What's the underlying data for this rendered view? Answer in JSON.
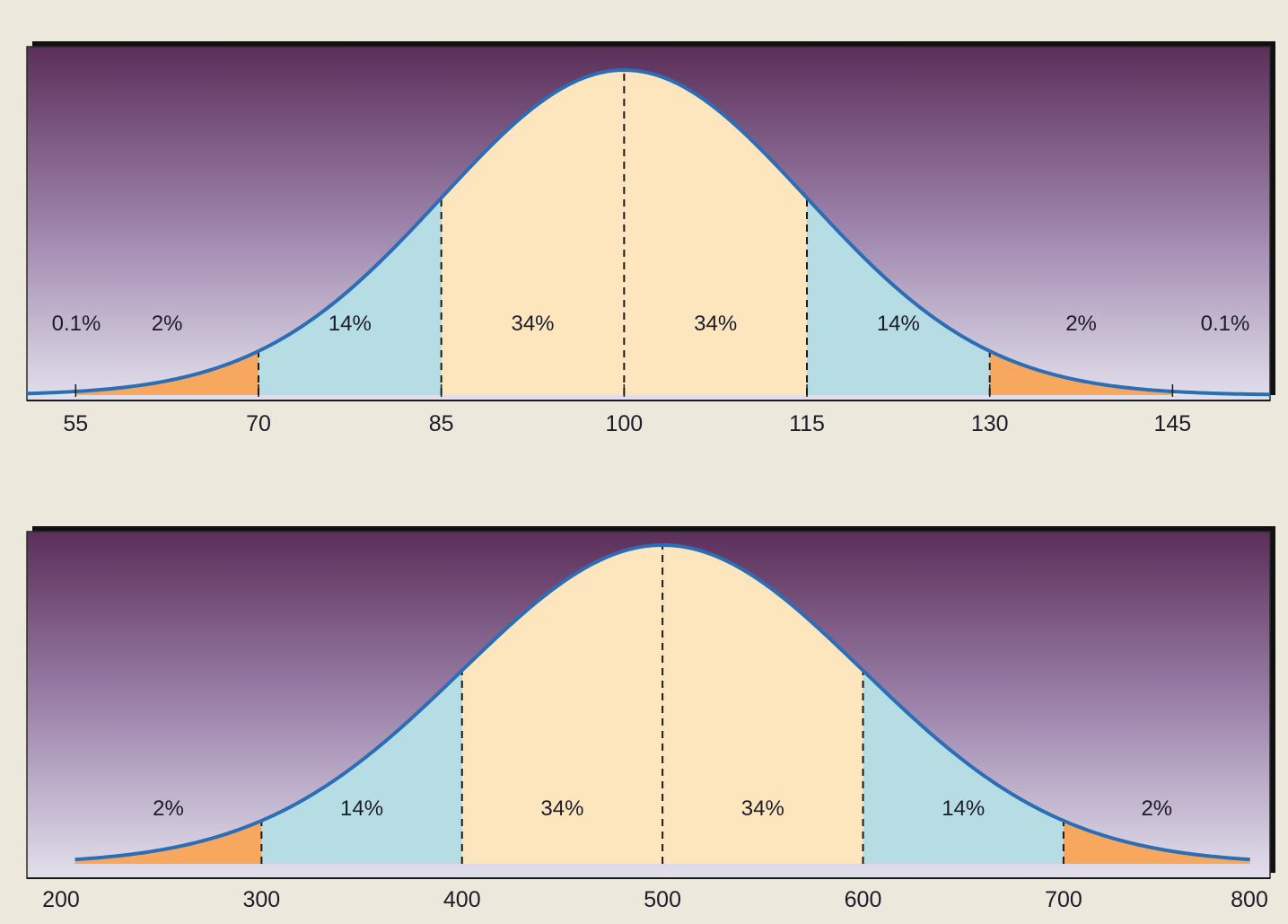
{
  "chart_data": [
    {
      "type": "area",
      "title": "",
      "xlabel": "",
      "ylabel": "",
      "xlim": [
        51,
        153
      ],
      "mean": 100,
      "sd": 15,
      "tick_labels": [
        "55",
        "70",
        "85",
        "100",
        "115",
        "130",
        "145"
      ],
      "ticks": [
        55,
        70,
        85,
        100,
        115,
        130,
        145
      ],
      "regions": [
        {
          "from": 51,
          "to": 55,
          "label": "0.1%",
          "color": "#f6f0f2"
        },
        {
          "from": 55,
          "to": 70,
          "label": "2%",
          "color": "#f8a85e"
        },
        {
          "from": 70,
          "to": 85,
          "label": "14%",
          "color": "#b6dce4"
        },
        {
          "from": 85,
          "to": 100,
          "label": "34%",
          "color": "#fde6bd"
        },
        {
          "from": 100,
          "to": 115,
          "label": "34%",
          "color": "#fde6bd"
        },
        {
          "from": 115,
          "to": 130,
          "label": "14%",
          "color": "#b6dce4"
        },
        {
          "from": 130,
          "to": 145,
          "label": "2%",
          "color": "#f8a85e"
        },
        {
          "from": 145,
          "to": 153,
          "label": "0.1%",
          "color": "#f6f0f2"
        }
      ],
      "dashed_lines": [
        70,
        85,
        100,
        115,
        130
      ],
      "curve_color": "#2c6eb5",
      "background_gradient": [
        "#5b2f5a",
        "#9c82aa",
        "#e2e0ec"
      ]
    },
    {
      "type": "area",
      "title": "",
      "xlabel": "",
      "ylabel": "",
      "xlim": [
        200,
        800
      ],
      "mean": 500,
      "sd": 100,
      "tick_labels": [
        "200",
        "300",
        "400",
        "500",
        "600",
        "700",
        "800"
      ],
      "ticks": [
        200,
        300,
        400,
        500,
        600,
        700,
        800
      ],
      "regions": [
        {
          "from": 207,
          "to": 300,
          "label": "2%",
          "color": "#f8a85e"
        },
        {
          "from": 300,
          "to": 400,
          "label": "14%",
          "color": "#b6dce4"
        },
        {
          "from": 400,
          "to": 500,
          "label": "34%",
          "color": "#fde6bd"
        },
        {
          "from": 500,
          "to": 600,
          "label": "34%",
          "color": "#fde6bd"
        },
        {
          "from": 600,
          "to": 700,
          "label": "14%",
          "color": "#b6dce4"
        },
        {
          "from": 700,
          "to": 793,
          "label": "2%",
          "color": "#f8a85e"
        }
      ],
      "dashed_lines": [
        300,
        400,
        500,
        600,
        700
      ],
      "curve_color": "#2c6eb5",
      "background_gradient": [
        "#5b2f5a",
        "#9c82aa",
        "#e2e0ec"
      ]
    }
  ]
}
